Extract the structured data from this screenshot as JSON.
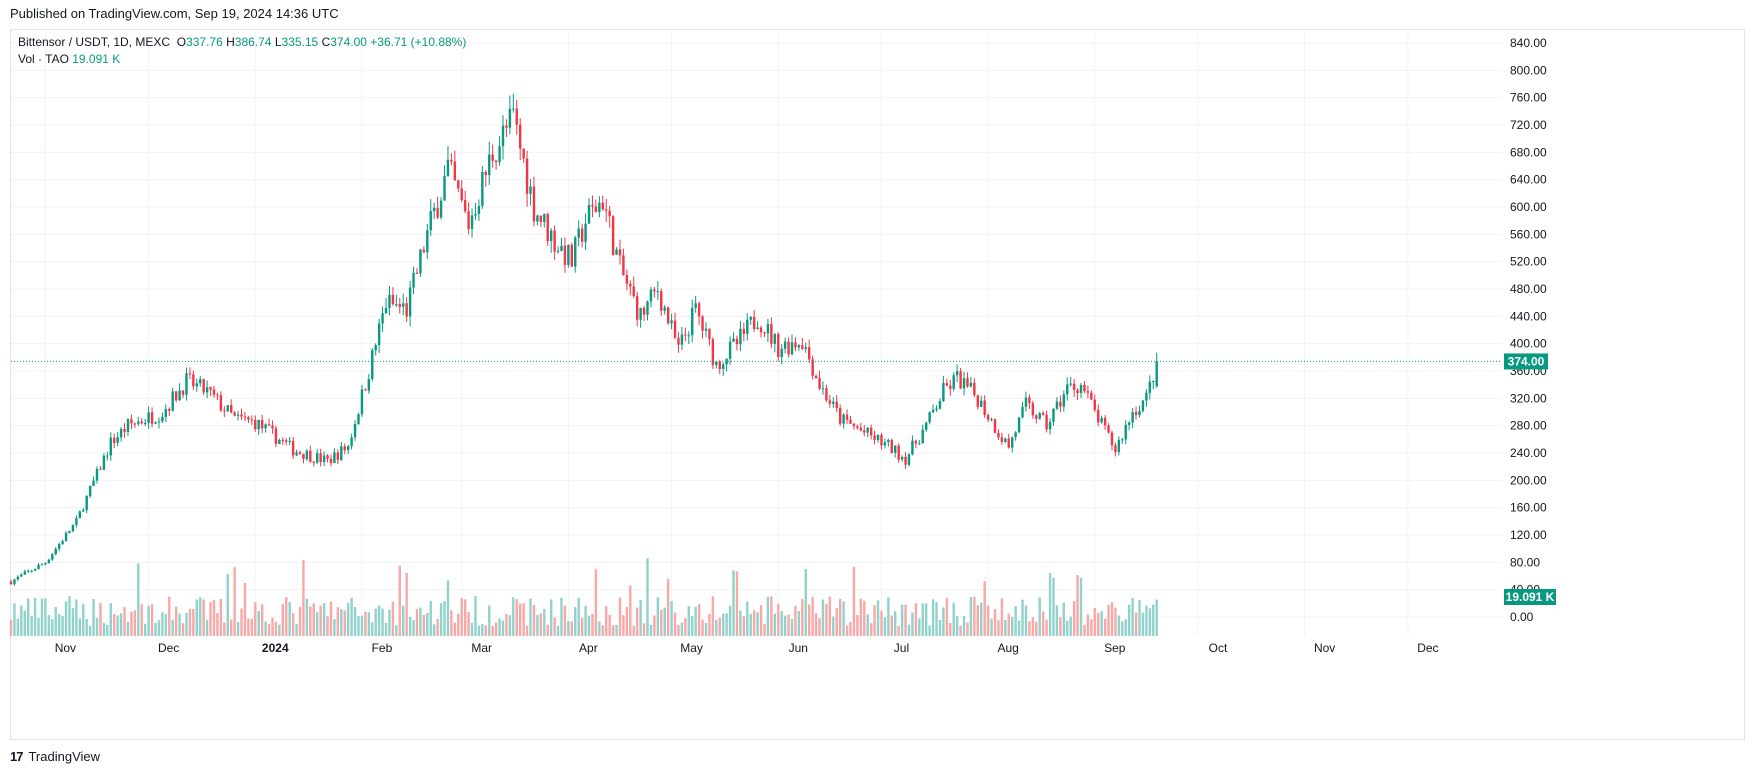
{
  "header": {
    "published": "Published on TradingView.com, Sep 19, 2024 14:36 UTC"
  },
  "legend": {
    "symbol": "Bittensor / USDT, 1D, MEXC",
    "open_label": "O",
    "open": "337.76",
    "high_label": "H",
    "high": "386.74",
    "low_label": "L",
    "low": "335.15",
    "close_label": "C",
    "close": "374.00",
    "change": "+36.71 (+10.88%)",
    "volume_label": "Vol · TAO",
    "volume": "19.091 K"
  },
  "footer": {
    "brand": "TradingView",
    "logo": "17"
  },
  "colors": {
    "up": "#089981",
    "down": "#f23645",
    "up_vol": "#92d2cc",
    "down_vol": "#f7a9a7",
    "grid": "#f0f3fa",
    "price_line": "#089981"
  },
  "chart_data": {
    "type": "candlestick",
    "title": "Bittensor / USDT, 1D, MEXC",
    "y_ticks": [
      "840.00",
      "800.00",
      "760.00",
      "720.00",
      "680.00",
      "640.00",
      "600.00",
      "560.00",
      "520.00",
      "480.00",
      "440.00",
      "400.00",
      "360.00",
      "320.00",
      "280.00",
      "240.00",
      "200.00",
      "160.00",
      "120.00",
      "80.00",
      "40.00",
      "0.00"
    ],
    "x_labels": [
      "Nov",
      "Dec",
      "2024",
      "Feb",
      "Mar",
      "Apr",
      "May",
      "Jun",
      "Jul",
      "Aug",
      "Sep",
      "Oct",
      "Nov",
      "Dec"
    ],
    "ylim": [
      0,
      860
    ],
    "last_price": 374.0,
    "last_price_label": "374.00",
    "last_volume_label": "19.091 K",
    "grid": true,
    "close_path": [
      [
        "2023-10-22",
        52
      ],
      [
        "2023-11-01",
        80
      ],
      [
        "2023-11-10",
        140
      ],
      [
        "2023-11-20",
        255
      ],
      [
        "2023-11-25",
        280
      ],
      [
        "2023-12-05",
        300
      ],
      [
        "2023-12-12",
        345
      ],
      [
        "2023-12-18",
        330
      ],
      [
        "2023-12-26",
        290
      ],
      [
        "2024-01-01",
        285
      ],
      [
        "2024-01-12",
        245
      ],
      [
        "2024-01-22",
        228
      ],
      [
        "2024-01-28",
        250
      ],
      [
        "2024-02-03",
        360
      ],
      [
        "2024-02-08",
        460
      ],
      [
        "2024-02-14",
        450
      ],
      [
        "2024-02-20",
        560
      ],
      [
        "2024-02-26",
        655
      ],
      [
        "2024-03-03",
        575
      ],
      [
        "2024-03-10",
        680
      ],
      [
        "2024-03-16",
        730
      ],
      [
        "2024-03-22",
        600
      ],
      [
        "2024-03-28",
        550
      ],
      [
        "2024-04-02",
        520
      ],
      [
        "2024-04-06",
        580
      ],
      [
        "2024-04-11",
        612
      ],
      [
        "2024-04-16",
        510
      ],
      [
        "2024-04-22",
        440
      ],
      [
        "2024-04-27",
        480
      ],
      [
        "2024-05-03",
        390
      ],
      [
        "2024-05-08",
        450
      ],
      [
        "2024-05-14",
        370
      ],
      [
        "2024-05-20",
        400
      ],
      [
        "2024-05-26",
        440
      ],
      [
        "2024-06-01",
        395
      ],
      [
        "2024-06-08",
        405
      ],
      [
        "2024-06-13",
        340
      ],
      [
        "2024-06-19",
        290
      ],
      [
        "2024-06-26",
        270
      ],
      [
        "2024-07-03",
        250
      ],
      [
        "2024-07-08",
        232
      ],
      [
        "2024-07-14",
        280
      ],
      [
        "2024-07-19",
        330
      ],
      [
        "2024-07-23",
        350
      ],
      [
        "2024-07-29",
        320
      ],
      [
        "2024-08-04",
        270
      ],
      [
        "2024-08-07",
        250
      ],
      [
        "2024-08-12",
        310
      ],
      [
        "2024-08-18",
        280
      ],
      [
        "2024-08-24",
        335
      ],
      [
        "2024-08-28",
        340
      ],
      [
        "2024-09-02",
        290
      ],
      [
        "2024-09-07",
        245
      ],
      [
        "2024-09-12",
        300
      ],
      [
        "2024-09-16",
        320
      ],
      [
        "2024-09-19",
        374
      ]
    ]
  }
}
